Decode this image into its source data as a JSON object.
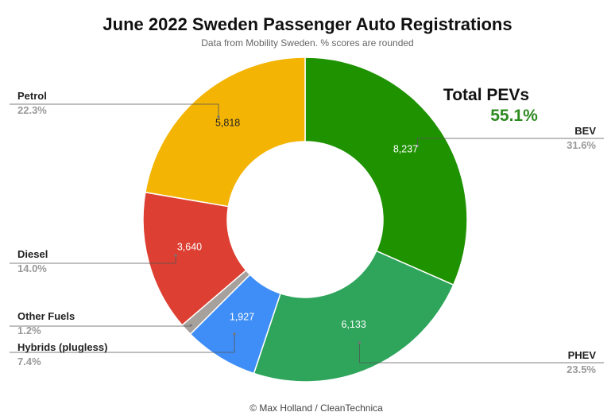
{
  "chart_data": {
    "type": "pie",
    "donut": true,
    "title": "June 2022 Sweden Passenger Auto Registrations",
    "subtitle": "Data from Mobility Sweden. % scores are rounded",
    "credit": "© Max Holland / CleanTechnica",
    "callout": {
      "label": "Total PEVs",
      "value": "55.1%"
    },
    "slices": [
      {
        "name": "BEV",
        "value": 8237,
        "value_label": "8,237",
        "percent": "31.6%",
        "color": "#1f9200"
      },
      {
        "name": "PHEV",
        "value": 6133,
        "value_label": "6,133",
        "percent": "23.5%",
        "color": "#2ea55b"
      },
      {
        "name": "Hybrids (plugless)",
        "value": 1927,
        "value_label": "1,927",
        "percent": "7.4%",
        "color": "#3f8ef7"
      },
      {
        "name": "Other Fuels",
        "value": 313,
        "value_label": "",
        "percent": "1.2%",
        "color": "#a7a19e"
      },
      {
        "name": "Diesel",
        "value": 3640,
        "value_label": "3,640",
        "percent": "14.0%",
        "color": "#dd3f32"
      },
      {
        "name": "Petrol",
        "value": 5818,
        "value_label": "5,818",
        "percent": "22.3%",
        "color": "#f3b404"
      }
    ]
  }
}
